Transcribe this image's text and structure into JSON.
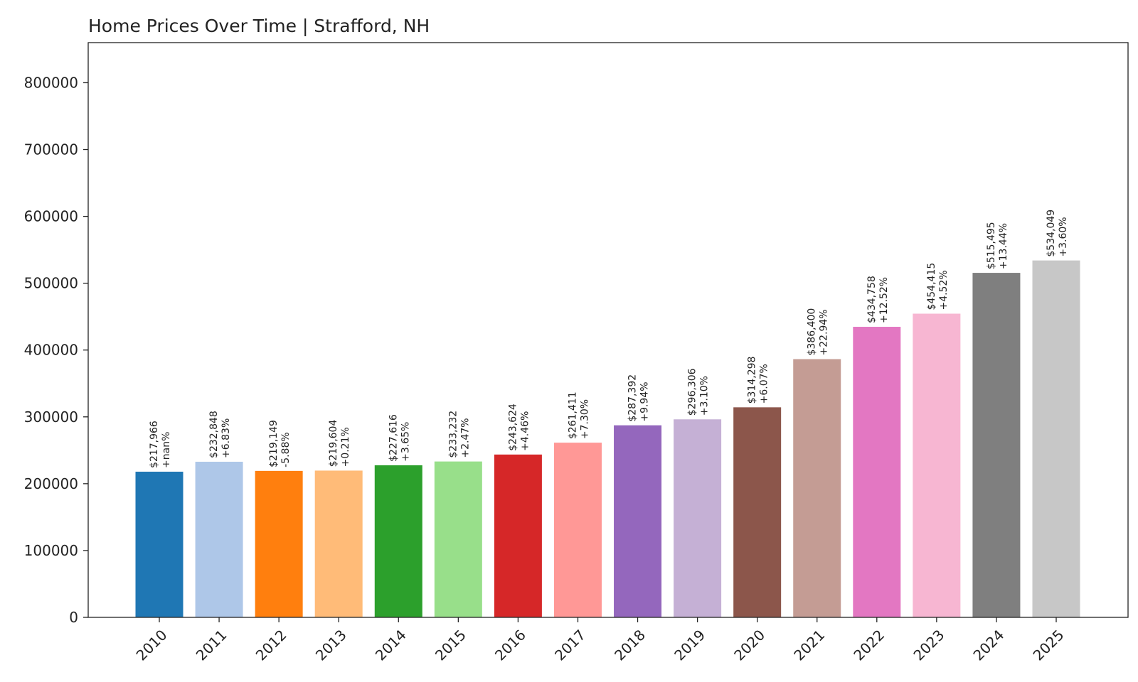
{
  "chart_data": {
    "type": "bar",
    "title": "Home Prices Over Time | Strafford, NH",
    "xlabel": "",
    "ylabel": "",
    "ylim": [
      0,
      860000
    ],
    "yticks": [
      0,
      100000,
      200000,
      300000,
      400000,
      500000,
      600000,
      700000,
      800000
    ],
    "ytick_labels": [
      "0",
      "100000",
      "200000",
      "300000",
      "400000",
      "500000",
      "600000",
      "700000",
      "800000"
    ],
    "grid": false,
    "legend": "none",
    "categories": [
      "2010",
      "2011",
      "2012",
      "2013",
      "2014",
      "2015",
      "2016",
      "2017",
      "2018",
      "2019",
      "2020",
      "2021",
      "2022",
      "2023",
      "2024",
      "2025"
    ],
    "values": [
      217966,
      232848,
      219149,
      219604,
      227616,
      233232,
      243624,
      261411,
      287392,
      296306,
      314298,
      386400,
      434758,
      454415,
      515495,
      534049
    ],
    "value_labels": [
      "$217,966",
      "$232,848",
      "$219,149",
      "$219,604",
      "$227,616",
      "$233,232",
      "$243,624",
      "$261,411",
      "$287,392",
      "$296,306",
      "$314,298",
      "$386,400",
      "$434,758",
      "$454,415",
      "$515,495",
      "$534,049"
    ],
    "change_labels": [
      "+nan%",
      "+6.83%",
      "-5.88%",
      "+0.21%",
      "+3.65%",
      "+2.47%",
      "+4.46%",
      "+7.30%",
      "+9.94%",
      "+3.10%",
      "+6.07%",
      "+22.94%",
      "+12.52%",
      "+4.52%",
      "+13.44%",
      "+3.60%"
    ],
    "colors": [
      "#1f77b4",
      "#aec7e8",
      "#ff7f0e",
      "#ffbb78",
      "#2ca02c",
      "#98df8a",
      "#d62728",
      "#ff9896",
      "#9467bd",
      "#c5b0d5",
      "#8c564b",
      "#c49c94",
      "#e377c2",
      "#f7b6d2",
      "#7f7f7f",
      "#c7c7c7"
    ]
  }
}
